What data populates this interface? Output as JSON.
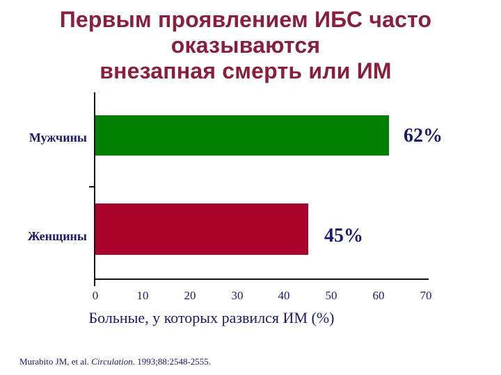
{
  "slide": {
    "title_lines": [
      "Первым проявлением ИБС часто",
      "оказываются",
      "внезапная смерть или ИМ"
    ]
  },
  "chart_data": {
    "type": "bar",
    "orientation": "horizontal",
    "categories": [
      "Мужчины",
      "Женщины"
    ],
    "values": [
      62,
      45
    ],
    "value_labels": [
      "62%",
      "45%"
    ],
    "series_colors": [
      "#008000",
      "#A9032C"
    ],
    "xlabel": "Больные, у которых развился ИМ (%)",
    "x_ticks": [
      "0",
      "10",
      "20",
      "30",
      "40",
      "50",
      "60",
      "70"
    ],
    "xlim": [
      0,
      70
    ],
    "grid": false,
    "legend": "none"
  },
  "footer": {
    "citation_authors": "Murabito JM, et al. ",
    "citation_journal": "Circulation.",
    "citation_tail": " 1993;88:2548-2555."
  },
  "colors": {
    "title": "#8B1E3D",
    "text_navy": "#1A1A70",
    "bar_men": "#008000",
    "bar_women": "#A9032C",
    "axis": "#111111",
    "background": "#FFFFFF"
  }
}
